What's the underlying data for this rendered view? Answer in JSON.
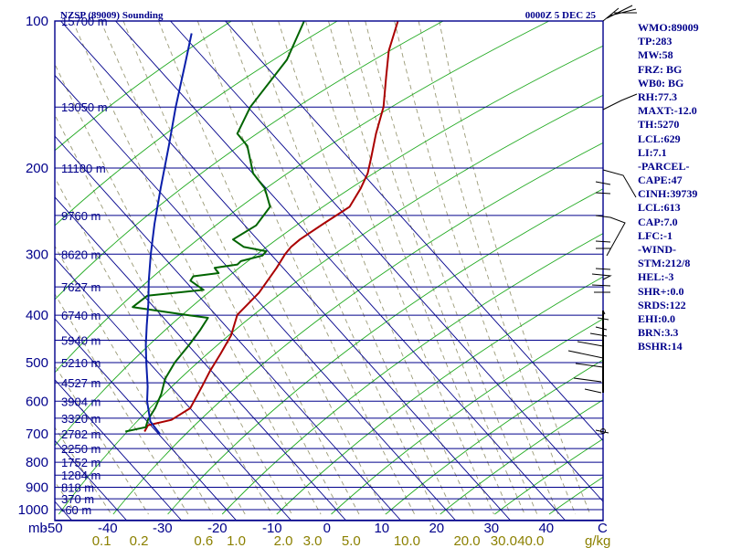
{
  "header": {
    "station_title": "NZSP (89009) Sounding",
    "valid_time": "0000Z  5 DEC 25"
  },
  "colors": {
    "frame": "#00008b",
    "isobar": "#00008b",
    "isotherm": "#00008b",
    "dry_adiabat": "#22aa22",
    "moist_adiabat": "#5fa8e6",
    "mixing_ratio": "#9a9a76",
    "temperature": "#aa0000",
    "dewpoint": "#006400",
    "parcel": "#0a1eaa",
    "mixing_ratio_labels": "#8b8000",
    "wind": "#000000"
  },
  "chart_data": {
    "type": "line",
    "diagram": "Skew-T log-P",
    "title": "NZSP (89009) Sounding",
    "xlabel": "",
    "ylabel": "",
    "pressure_axis_unit": "mb",
    "pressure_levels": [
      100,
      200,
      300,
      400,
      500,
      600,
      700,
      800,
      900,
      1000
    ],
    "pressure_labels": [
      "100",
      "200",
      "300",
      "400",
      "500",
      "600",
      "700",
      "800",
      "900",
      "1000"
    ],
    "ylim_hpa": [
      1050,
      100
    ],
    "temperature_ticks": [
      -50,
      -40,
      -30,
      -20,
      -10,
      0,
      10,
      20,
      30,
      40
    ],
    "temperature_tick_labels": [
      "-50",
      "-40",
      "-30",
      "-20",
      "-10",
      "0",
      "10",
      "20",
      "30",
      "40"
    ],
    "temperature_unit": "C",
    "mixing_ratio_labels": [
      "0.1",
      "0.2",
      "0.6",
      "1.0",
      "2.0",
      "3.0",
      "5.0",
      "10.0",
      "20.0",
      "30.0",
      "40.0"
    ],
    "mixing_ratio_values": [
      0.1,
      0.2,
      0.6,
      1.0,
      2.0,
      3.0,
      5.0,
      10.0,
      20.0,
      30.0,
      40.0
    ],
    "mixing_ratio_unit": "g/kg",
    "height_labels": [
      {
        "p": 100,
        "label": "15700 m"
      },
      {
        "p": 150,
        "label": "13050 m"
      },
      {
        "p": 200,
        "label": "11180 m"
      },
      {
        "p": 250,
        "label": "9760 m"
      },
      {
        "p": 300,
        "label": "8620 m"
      },
      {
        "p": 350,
        "label": "7627 m"
      },
      {
        "p": 400,
        "label": "6740 m"
      },
      {
        "p": 450,
        "label": "5940 m"
      },
      {
        "p": 500,
        "label": "5210 m"
      },
      {
        "p": 550,
        "label": "4527 m"
      },
      {
        "p": 600,
        "label": "3904 m"
      },
      {
        "p": 650,
        "label": "3320 m"
      },
      {
        "p": 700,
        "label": "2782 m"
      },
      {
        "p": 750,
        "label": "2250 m"
      },
      {
        "p": 800,
        "label": "1752 m"
      },
      {
        "p": 850,
        "label": "1284 m"
      },
      {
        "p": 900,
        "label": "818 m"
      },
      {
        "p": 950,
        "label": "370 m"
      },
      {
        "p": 1000,
        "label": "-60 m"
      }
    ],
    "series": [
      {
        "key": "temperature",
        "points": [
          [
            692,
            -47.8
          ],
          [
            672,
            -48.2
          ],
          [
            655,
            -44.8
          ],
          [
            620,
            -43.3
          ],
          [
            560,
            -44.7
          ],
          [
            520,
            -45.8
          ],
          [
            480,
            -46.7
          ],
          [
            440,
            -47.8
          ],
          [
            400,
            -50.0
          ],
          [
            395,
            -50.0
          ],
          [
            360,
            -49.7
          ],
          [
            320,
            -50.6
          ],
          [
            300,
            -51.3
          ],
          [
            290,
            -51.4
          ],
          [
            280,
            -51.0
          ],
          [
            260,
            -49.3
          ],
          [
            240,
            -47.3
          ],
          [
            220,
            -48.3
          ],
          [
            205,
            -49.5
          ],
          [
            190,
            -51.5
          ],
          [
            170,
            -54.5
          ],
          [
            150,
            -57.5
          ],
          [
            130,
            -62.0
          ],
          [
            115,
            -65.8
          ],
          [
            100,
            -69.0
          ]
        ]
      },
      {
        "key": "dewpoint",
        "points": [
          [
            692,
            -51.3
          ],
          [
            678,
            -48.3
          ],
          [
            655,
            -49.1
          ],
          [
            620,
            -49.7
          ],
          [
            580,
            -50.9
          ],
          [
            540,
            -52.7
          ],
          [
            500,
            -53.6
          ],
          [
            460,
            -53.9
          ],
          [
            430,
            -54.3
          ],
          [
            405,
            -54.9
          ],
          [
            400,
            -58.9
          ],
          [
            385,
            -70.4
          ],
          [
            365,
            -69.6
          ],
          [
            355,
            -60.3
          ],
          [
            340,
            -64.2
          ],
          [
            333,
            -64.4
          ],
          [
            328,
            -60.3
          ],
          [
            320,
            -61.9
          ],
          [
            315,
            -58.3
          ],
          [
            310,
            -58.2
          ],
          [
            302,
            -55.2
          ],
          [
            296,
            -55.2
          ],
          [
            290,
            -60.0
          ],
          [
            280,
            -63.2
          ],
          [
            262,
            -61.3
          ],
          [
            240,
            -61.8
          ],
          [
            220,
            -65.8
          ],
          [
            205,
            -70.4
          ],
          [
            180,
            -76.0
          ],
          [
            170,
            -79.8
          ],
          [
            150,
            -81.8
          ],
          [
            120,
            -82.9
          ],
          [
            100,
            -86.1
          ]
        ]
      },
      {
        "key": "parcel",
        "points": [
          [
            700,
            -44.6
          ],
          [
            660,
            -48.4
          ],
          [
            600,
            -52.3
          ],
          [
            560,
            -54.6
          ],
          [
            500,
            -58.8
          ],
          [
            460,
            -61.8
          ],
          [
            420,
            -64.8
          ],
          [
            380,
            -68.0
          ],
          [
            340,
            -71.8
          ],
          [
            300,
            -75.8
          ],
          [
            260,
            -80.1
          ],
          [
            220,
            -84.8
          ],
          [
            180,
            -90.3
          ],
          [
            150,
            -95.4
          ],
          [
            120,
            -101.3
          ],
          [
            106,
            -104.6
          ]
        ]
      }
    ],
    "wind_barbs_note": "wind barbs drawn along right edge (speed/direction not labeled)"
  },
  "indices": [
    "WMO:89009",
    "TP:283",
    "MW:58",
    "FRZ: BG",
    "WB0: BG",
    "RH:77.3",
    "MAXT:-12.0",
    "TH:5270",
    "LCL:629",
    "LI:7.1",
    "-PARCEL-",
    "CAPE:47",
    "CINH:39739",
    "LCL:613",
    "CAP:7.0",
    "LFC:-1",
    "-WIND-",
    "STM:212/8",
    "HEL:-3",
    "SHR+:0.0",
    "SRDS:122",
    "EHI:0.0",
    "BRN:3.3",
    "BSHR:14"
  ]
}
